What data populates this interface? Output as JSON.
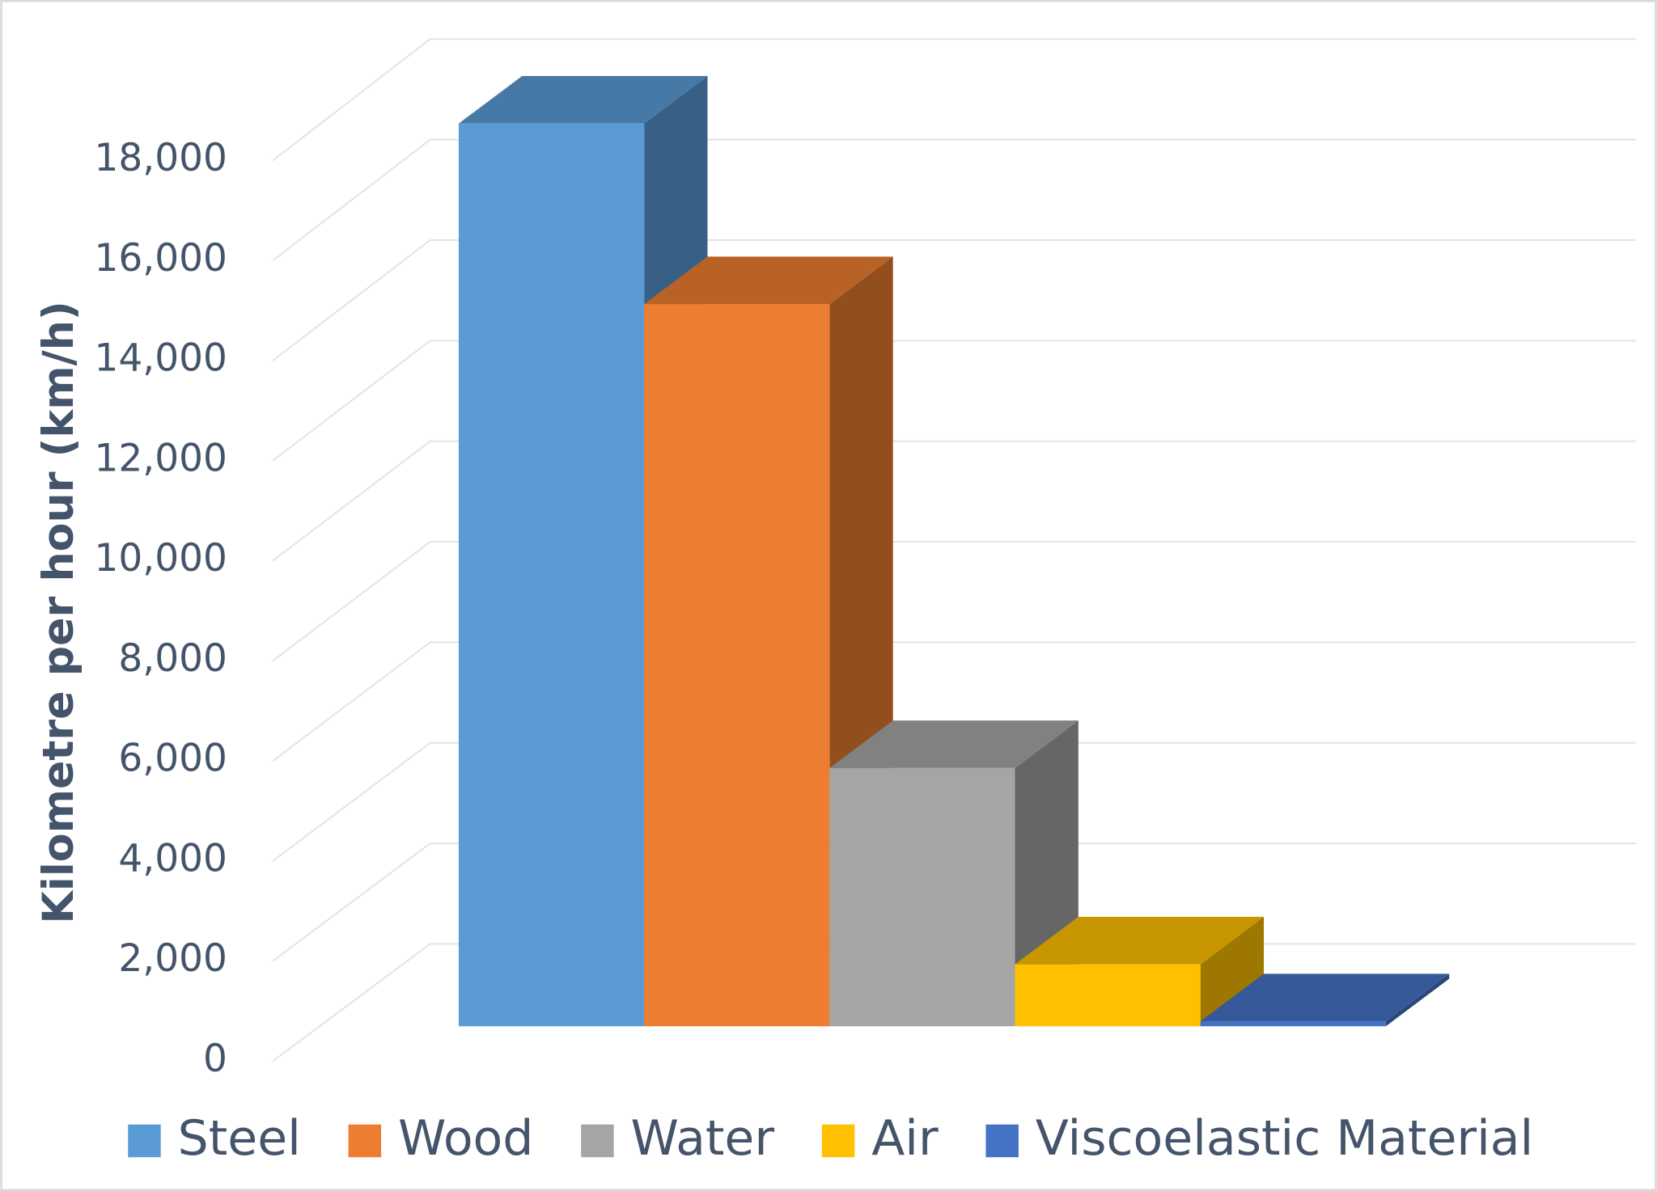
{
  "chart_data": {
    "type": "bar",
    "y_label": "Kilometre per hour (km/h)",
    "categories": [
      "Steel",
      "Wood",
      "Water",
      "Air",
      "Viscoelastic Material"
    ],
    "values": [
      18000,
      14400,
      5150,
      1235,
      100
    ],
    "colors": [
      "#5b9bd5",
      "#ed7d31",
      "#a5a5a5",
      "#ffc000",
      "#4472c4"
    ],
    "ylim": [
      0,
      18000
    ],
    "yticks": [
      0,
      {
        "value": 2000,
        "label": "2,000"
      },
      {
        "value": 4000,
        "label": "4,000"
      },
      {
        "value": 6000,
        "label": "6,000"
      },
      {
        "value": 8000,
        "label": "8,000"
      },
      {
        "value": 10000,
        "label": "10,000"
      },
      {
        "value": 12000,
        "label": "12,000"
      },
      {
        "value": 14000,
        "label": "14,000"
      },
      {
        "value": 16000,
        "label": "16,000"
      },
      {
        "value": 18000,
        "label": "18,000"
      }
    ],
    "grid": true,
    "legend": "bottom"
  }
}
